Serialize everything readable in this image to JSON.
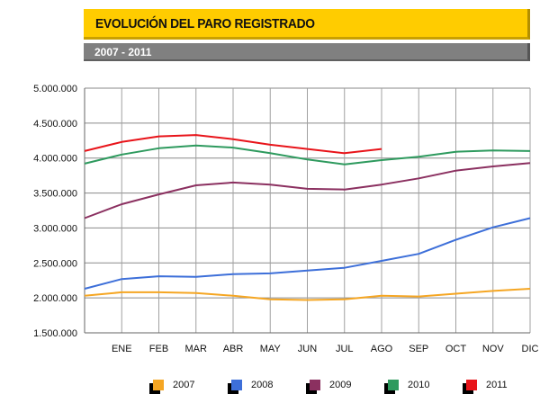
{
  "header": {
    "title": "EVOLUCIÓN DEL PARO REGISTRADO",
    "subtitle": "2007 - 2011"
  },
  "chart_data": {
    "type": "line",
    "title": "EVOLUCIÓN DEL PARO REGISTRADO",
    "subtitle": "2007 - 2011",
    "categories": [
      "",
      "ENE",
      "FEB",
      "MAR",
      "ABR",
      "MAY",
      "JUN",
      "JUL",
      "AGO",
      "SEP",
      "OCT",
      "NOV",
      "DIC"
    ],
    "ylim": [
      1500000,
      5000000
    ],
    "yticks": [
      1500000,
      2000000,
      2500000,
      3000000,
      3500000,
      4000000,
      4500000,
      5000000
    ],
    "ytick_labels": [
      "1.500.000",
      "2.000.000",
      "2.500.000",
      "3.000.000",
      "3.500.000",
      "4.000.000",
      "4.500.000",
      "5.000.000"
    ],
    "grid": true,
    "legend_placement": "bottom",
    "series": [
      {
        "name": "2007",
        "color": "#f5a623",
        "values": [
          2030000,
          2080000,
          2080000,
          2070000,
          2030000,
          1980000,
          1970000,
          1980000,
          2030000,
          2020000,
          2060000,
          2100000,
          2130000
        ]
      },
      {
        "name": "2008",
        "color": "#3d6fd9",
        "values": [
          2130000,
          2270000,
          2310000,
          2300000,
          2340000,
          2350000,
          2390000,
          2430000,
          2530000,
          2630000,
          2830000,
          3010000,
          3140000
        ]
      },
      {
        "name": "2009",
        "color": "#8b3060",
        "values": [
          3140000,
          3340000,
          3480000,
          3610000,
          3650000,
          3620000,
          3560000,
          3550000,
          3620000,
          3710000,
          3820000,
          3880000,
          3930000
        ]
      },
      {
        "name": "2010",
        "color": "#2e9a5e",
        "values": [
          3920000,
          4050000,
          4140000,
          4180000,
          4150000,
          4070000,
          3980000,
          3910000,
          3970000,
          4020000,
          4090000,
          4110000,
          4100000
        ]
      },
      {
        "name": "2011",
        "color": "#e8141a",
        "values": [
          4100000,
          4230000,
          4310000,
          4330000,
          4270000,
          4190000,
          4130000,
          4070000,
          4130000,
          null,
          null,
          null,
          null
        ]
      }
    ]
  }
}
